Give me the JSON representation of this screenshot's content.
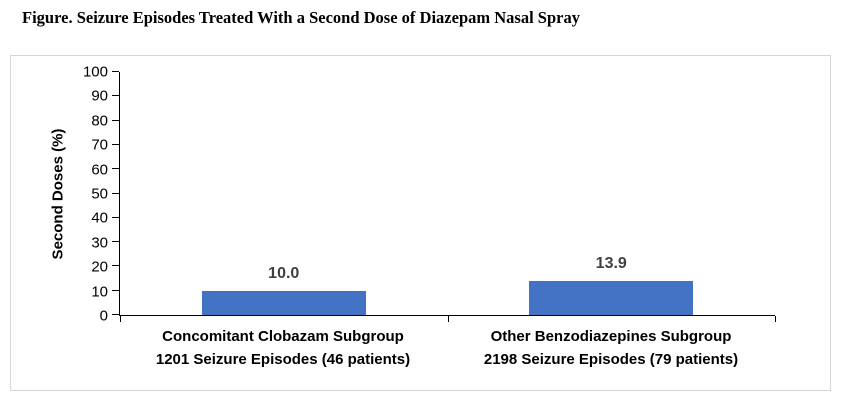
{
  "figure": {
    "title": "Figure. Seizure Episodes Treated With a Second Dose of Diazepam Nasal Spray"
  },
  "chart_data": {
    "type": "bar",
    "title": "Figure. Seizure Episodes Treated With a Second Dose of Diazepam Nasal Spray",
    "ylabel": "Second Doses (%)",
    "xlabel": "",
    "ylim": [
      0,
      100
    ],
    "yticks": [
      0,
      10,
      20,
      30,
      40,
      50,
      60,
      70,
      80,
      90,
      100
    ],
    "grid": false,
    "legend": false,
    "bar_color": "#4472C4",
    "value_label_color": "#404040",
    "categories": [
      {
        "line1": "Concomitant Clobazam Subgroup",
        "line2": "1201 Seizure Episodes (46 patients)"
      },
      {
        "line1": "Other Benzodiazepines Subgroup",
        "line2": "2198 Seizure Episodes (79 patients)"
      }
    ],
    "values": [
      10.0,
      13.9
    ],
    "value_labels": [
      "10.0",
      "13.9"
    ]
  }
}
